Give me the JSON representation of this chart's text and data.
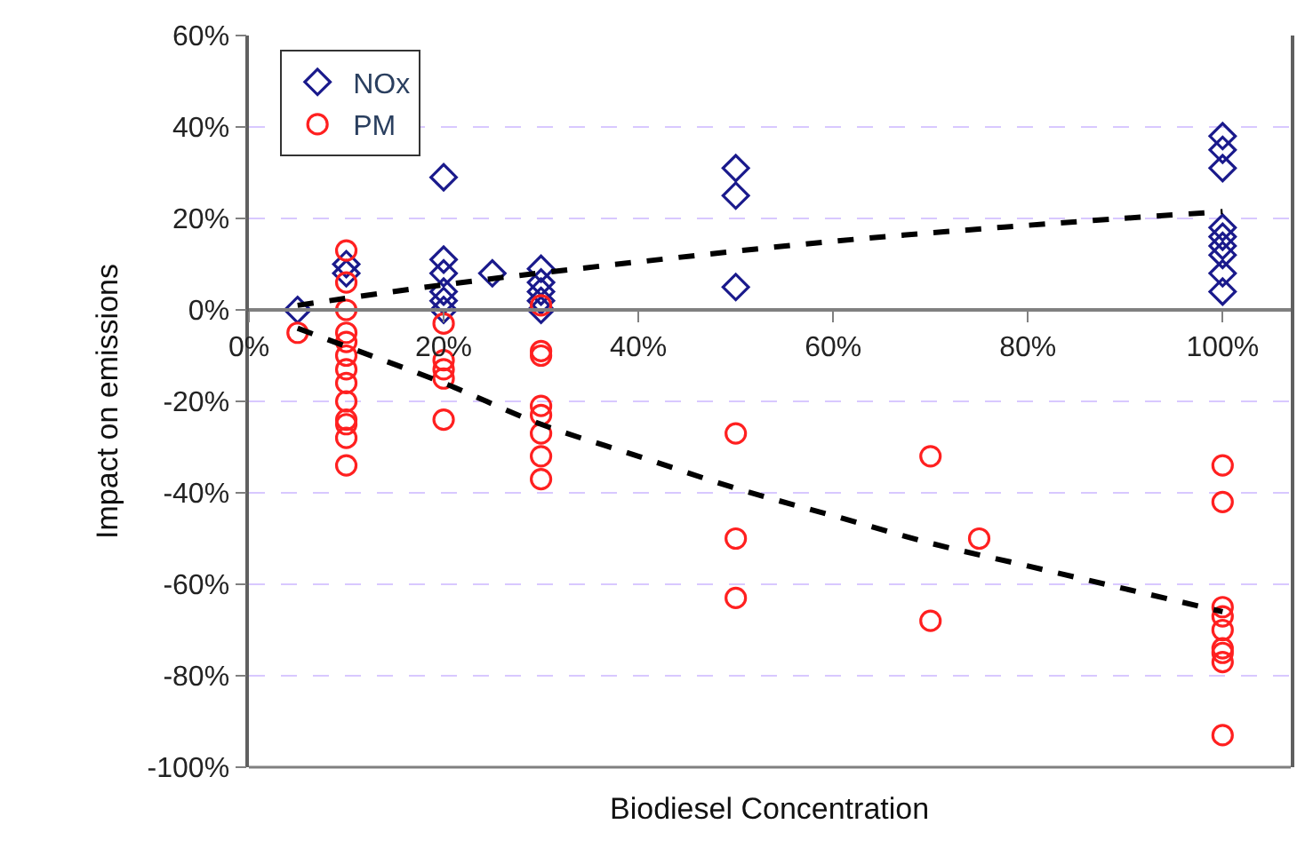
{
  "chart_data": {
    "type": "scatter",
    "xlabel": "Biodiesel Concentration",
    "ylabel": "Impact on emissions",
    "xlim": [
      0,
      107
    ],
    "xticks": [
      {
        "value": 0,
        "label": "0%"
      },
      {
        "value": 20,
        "label": "20%"
      },
      {
        "value": 40,
        "label": "40%"
      },
      {
        "value": 60,
        "label": "60%"
      },
      {
        "value": 80,
        "label": "80%"
      },
      {
        "value": 100,
        "label": "100%"
      }
    ],
    "ylim": [
      -100,
      60
    ],
    "yticks": [
      {
        "value": -100,
        "label": "-100%"
      },
      {
        "value": -80,
        "label": "-80%"
      },
      {
        "value": -60,
        "label": "-60%"
      },
      {
        "value": -40,
        "label": "-40%"
      },
      {
        "value": -20,
        "label": "-20%"
      },
      {
        "value": 0,
        "label": "0%"
      },
      {
        "value": 20,
        "label": "20%"
      },
      {
        "value": 40,
        "label": "40%"
      },
      {
        "value": 60,
        "label": "60%"
      }
    ],
    "grid": "y",
    "legend": "top left",
    "series": [
      {
        "name": "NOx",
        "marker": "diamond",
        "color": "#1a1a8c",
        "x": [
          5,
          10,
          10,
          20,
          20,
          20,
          20,
          20,
          20,
          25,
          30,
          30,
          30,
          30,
          30,
          50,
          50,
          50,
          100,
          100,
          100,
          100,
          100,
          100,
          100,
          100,
          100
        ],
        "values": [
          0,
          10,
          8,
          29,
          11,
          8,
          4,
          2,
          0,
          8,
          9,
          6,
          4,
          2,
          0,
          31,
          25,
          5,
          38,
          35,
          31,
          18,
          16,
          14,
          12,
          8,
          4
        ]
      },
      {
        "name": "PM",
        "marker": "circle",
        "color": "#ff2020",
        "x": [
          5,
          10,
          10,
          10,
          10,
          10,
          10,
          10,
          10,
          10,
          10,
          10,
          10,
          10,
          20,
          20,
          20,
          20,
          20,
          30,
          30,
          30,
          30,
          30,
          30,
          30,
          30,
          50,
          50,
          50,
          70,
          70,
          75,
          100,
          100,
          100,
          100,
          100,
          100,
          100,
          100,
          100
        ],
        "values": [
          -5,
          13,
          6,
          0,
          -5,
          -7,
          -10,
          -13,
          -16,
          -20,
          -24,
          -25,
          -28,
          -34,
          -3,
          -11,
          -13,
          -15,
          -24,
          1,
          -9,
          -10,
          -21,
          -23,
          -27,
          -32,
          -37,
          -27,
          -50,
          -63,
          -32,
          -68,
          -50,
          -34,
          -42,
          -65,
          -67,
          -70,
          -74,
          -75,
          -77,
          -93
        ]
      },
      {
        "type": "line",
        "line_style": "dashed",
        "marker": "none",
        "color": "#000000",
        "x": [
          5,
          20,
          40,
          60,
          80,
          100
        ],
        "values": [
          1,
          5.5,
          10.5,
          15,
          18.5,
          21.5
        ]
      },
      {
        "type": "line",
        "line_style": "dashed",
        "marker": "none",
        "color": "#000000",
        "x": [
          5,
          10,
          20,
          30,
          40,
          50,
          60,
          70,
          80,
          90,
          100
        ],
        "values": [
          -4,
          -8,
          -16,
          -25,
          -32,
          -39,
          -45,
          -51,
          -56,
          -61,
          -66
        ]
      }
    ]
  }
}
